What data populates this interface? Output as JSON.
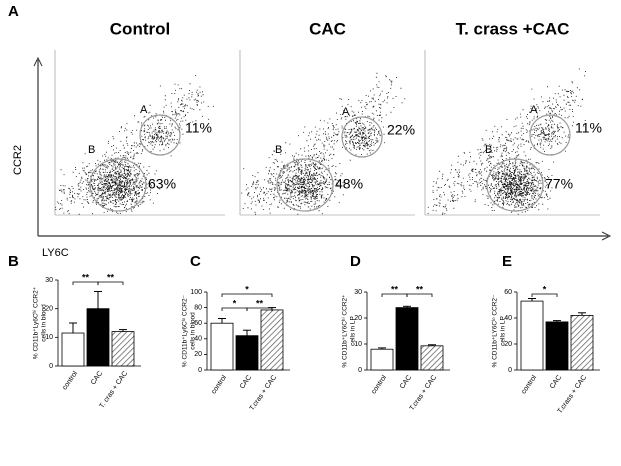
{
  "panel_a": {
    "letter": "A",
    "y_axis_label": "CCR2",
    "x_axis_label": "LY6C",
    "plots": [
      {
        "title": "Control",
        "gate_a": "A",
        "gate_a_pct": "11%",
        "gate_b": "B",
        "gate_b_pct": "63%"
      },
      {
        "title": "CAC",
        "gate_a": "A",
        "gate_a_pct": "22%",
        "gate_b": "B",
        "gate_b_pct": "48%"
      },
      {
        "title": "T. crass +CAC",
        "gate_a": "A",
        "gate_a_pct": "11%",
        "gate_b": "B",
        "gate_b_pct": "77%"
      }
    ]
  },
  "chart_data": [
    {
      "type": "bar",
      "panel": "B",
      "y_label": [
        "% CD11b⁺Ly6Cʰⁱ CCR2⁺",
        "cells in blood"
      ],
      "categories": [
        "control",
        "CAC",
        "T. cras + CAC"
      ],
      "values": [
        11.5,
        20,
        12
      ],
      "errors": [
        3.5,
        6,
        0.7
      ],
      "bar_styles": [
        "white",
        "black",
        "hatched"
      ],
      "ylim": [
        0,
        30
      ],
      "yticks": [
        0,
        10,
        20,
        30
      ],
      "annotations": [
        {
          "text": "**",
          "from": 0,
          "to": 1
        },
        {
          "text": "**",
          "from": 1,
          "to": 2
        }
      ]
    },
    {
      "type": "bar",
      "panel": "C",
      "y_label": [
        "% CD11b⁺Ly6Cˡᵒ CCR2⁻",
        "cells in blood"
      ],
      "categories": [
        "control",
        "CAC",
        "T.cras + CAC"
      ],
      "values": [
        60,
        44,
        77
      ],
      "errors": [
        6,
        7,
        3
      ],
      "bar_styles": [
        "white",
        "black",
        "hatched"
      ],
      "ylim": [
        0,
        100
      ],
      "yticks": [
        0,
        20,
        40,
        60,
        80,
        100
      ],
      "annotations": [
        {
          "text": "*",
          "from": 0,
          "to": 2
        },
        {
          "text": "*",
          "from": 0,
          "to": 1
        },
        {
          "text": "**",
          "from": 1,
          "to": 2
        }
      ]
    },
    {
      "type": "bar",
      "panel": "D",
      "y_label": [
        "% CD11b⁺LY6Cʰⁱ CCR2⁺",
        "cells in LP"
      ],
      "categories": [
        "control",
        "CAC",
        "T.cras + CAC"
      ],
      "values": [
        8,
        24,
        9.3
      ],
      "errors": [
        0.5,
        0.5,
        0.4
      ],
      "bar_styles": [
        "white",
        "black",
        "hatched"
      ],
      "ylim": [
        0,
        30
      ],
      "yticks": [
        0,
        10,
        20,
        30
      ],
      "annotations": [
        {
          "text": "**",
          "from": 0,
          "to": 1
        },
        {
          "text": "**",
          "from": 1,
          "to": 2
        }
      ]
    },
    {
      "type": "bar",
      "panel": "E",
      "y_label": [
        "% CD11b⁺LY6Cˡᵒ CCR2⁻",
        "cells in LP"
      ],
      "categories": [
        "control",
        "CAC",
        "T.crass + CAC"
      ],
      "values": [
        53,
        37,
        42
      ],
      "errors": [
        2,
        1,
        2
      ],
      "bar_styles": [
        "white",
        "black",
        "hatched"
      ],
      "ylim": [
        0,
        60
      ],
      "yticks": [
        0,
        20,
        40,
        60
      ],
      "annotations": [
        {
          "text": "*",
          "from": 0,
          "to": 1
        }
      ]
    }
  ]
}
